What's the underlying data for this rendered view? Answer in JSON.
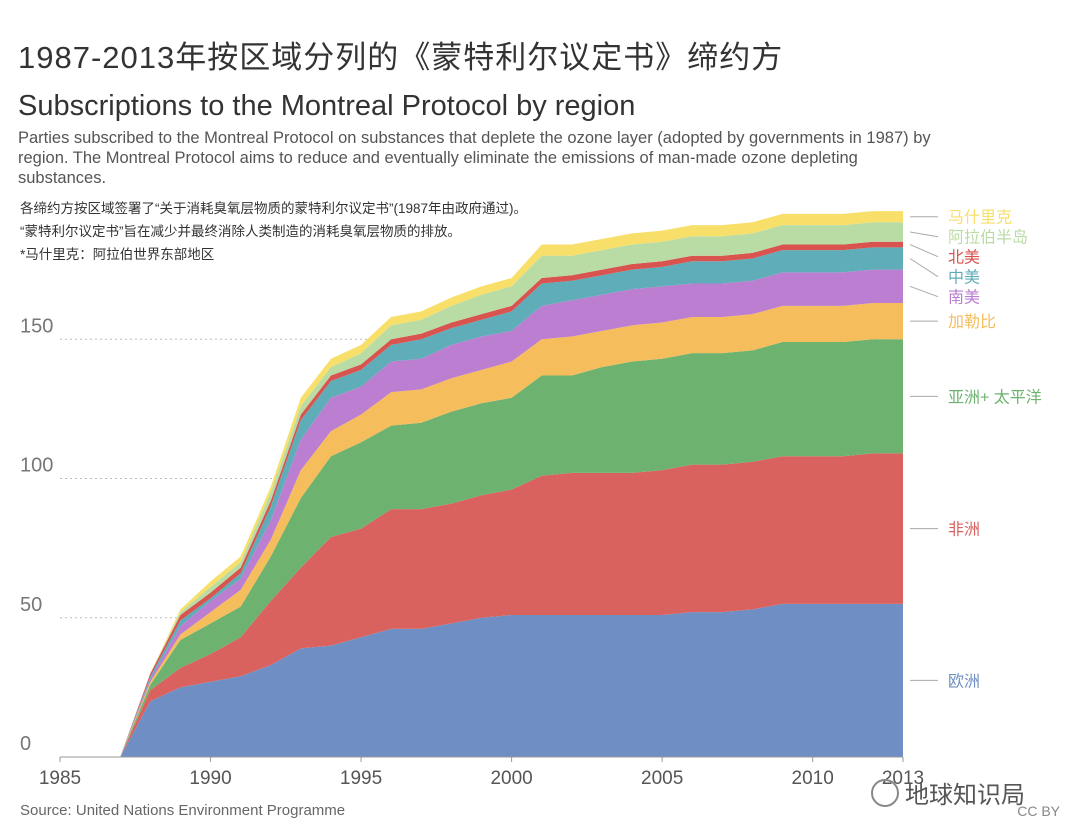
{
  "chart_data": {
    "type": "stacked_area",
    "title": "1987-2013年按区域分列的《蒙特利尔议定书》缔约方",
    "subtitle": "Subscriptions to the Montreal Protocol by region",
    "description": "Parties subscribed to the Montreal Protocol on substances that deplete the ozone layer (adopted by governments in 1987) by region. The Montreal Protocol aims to reduce and eventually eliminate the emissions of man-made ozone depleting substances.",
    "notes": [
      "各缔约方按区域签署了“关于消耗臭氧层物质的蒙特利尔议定书”(1987年由政府通过)。",
      "“蒙特利尔议定书”旨在减少并最终消除人类制造的消耗臭氧层物质的排放。",
      "*马什里克：阿拉伯世界东部地区"
    ],
    "source": "Source: United Nations Environment Programme",
    "watermark": "地球知识局",
    "license": "CC BY",
    "x": [
      1985,
      1986,
      1987,
      1988,
      1989,
      1990,
      1991,
      1992,
      1993,
      1994,
      1995,
      1996,
      1997,
      1998,
      1999,
      2000,
      2001,
      2002,
      2003,
      2004,
      2005,
      2006,
      2007,
      2008,
      2009,
      2010,
      2011,
      2012,
      2013
    ],
    "xlim": [
      1985,
      2013
    ],
    "xticks": [
      1985,
      1990,
      1995,
      2000,
      2005,
      2010,
      2013
    ],
    "ylim": [
      0,
      200
    ],
    "yticks": [
      0,
      50,
      100,
      150
    ],
    "grid": true,
    "series": [
      {
        "name": "欧洲",
        "color": "#6f8fc4",
        "values": [
          0,
          0,
          0,
          20,
          25,
          27,
          29,
          33,
          39,
          40,
          43,
          46,
          46,
          48,
          50,
          51,
          51,
          51,
          51,
          51,
          51,
          52,
          52,
          53,
          55,
          55,
          55,
          55,
          55
        ]
      },
      {
        "name": "非洲",
        "color": "#d9625f",
        "values": [
          0,
          0,
          0,
          4,
          7,
          10,
          14,
          23,
          29,
          39,
          39,
          43,
          43,
          43,
          44,
          45,
          50,
          51,
          51,
          51,
          52,
          53,
          53,
          53,
          53,
          53,
          53,
          54,
          54
        ]
      },
      {
        "name": "亚洲+ 太平洋",
        "color": "#6db36f",
        "values": [
          0,
          0,
          0,
          2,
          10,
          11,
          11,
          16,
          25,
          29,
          31,
          30,
          31,
          33,
          33,
          33,
          36,
          35,
          38,
          40,
          40,
          40,
          40,
          40,
          41,
          41,
          41,
          41,
          41
        ]
      },
      {
        "name": "加勒比",
        "color": "#f5bd5c",
        "values": [
          0,
          0,
          0,
          1,
          2,
          4,
          6,
          6,
          10,
          9,
          10,
          12,
          12,
          12,
          12,
          13,
          13,
          14,
          13,
          13,
          13,
          13,
          13,
          13,
          13,
          13,
          13,
          13,
          13
        ]
      },
      {
        "name": "南美",
        "color": "#bb7ed1",
        "values": [
          0,
          0,
          0,
          1,
          3,
          4,
          4,
          7,
          11,
          12,
          10,
          11,
          11,
          12,
          12,
          11,
          12,
          13,
          13,
          13,
          13,
          12,
          12,
          12,
          12,
          12,
          12,
          12,
          12
        ]
      },
      {
        "name": "中美",
        "color": "#5fadb8",
        "values": [
          0,
          0,
          0,
          1,
          2,
          1,
          2,
          5,
          7,
          6,
          6,
          6,
          7,
          6,
          6,
          7,
          8,
          7,
          7,
          7,
          7,
          8,
          8,
          8,
          8,
          8,
          8,
          8,
          8
        ]
      },
      {
        "name": "北美",
        "color": "#d9534f",
        "values": [
          0,
          0,
          0,
          1,
          2,
          2,
          2,
          2,
          2,
          2,
          2,
          2,
          2,
          2,
          2,
          2,
          2,
          2,
          2,
          2,
          2,
          2,
          2,
          2,
          2,
          2,
          2,
          2,
          2
        ]
      },
      {
        "name": "阿拉伯半岛",
        "color": "#b9dca5",
        "values": [
          0,
          0,
          0,
          0,
          1,
          2,
          2,
          3,
          3,
          3,
          4,
          5,
          5,
          6,
          7,
          7,
          8,
          7,
          7,
          7,
          7,
          7,
          7,
          7,
          7,
          7,
          7,
          7,
          7
        ]
      },
      {
        "name": "马什里克",
        "color": "#f7df6a",
        "values": [
          0,
          0,
          0,
          0,
          1,
          2,
          2,
          2,
          3,
          3,
          3,
          3,
          3,
          3,
          3,
          3,
          4,
          4,
          4,
          4,
          4,
          4,
          4,
          4,
          4,
          4,
          4,
          4,
          4
        ]
      }
    ]
  }
}
